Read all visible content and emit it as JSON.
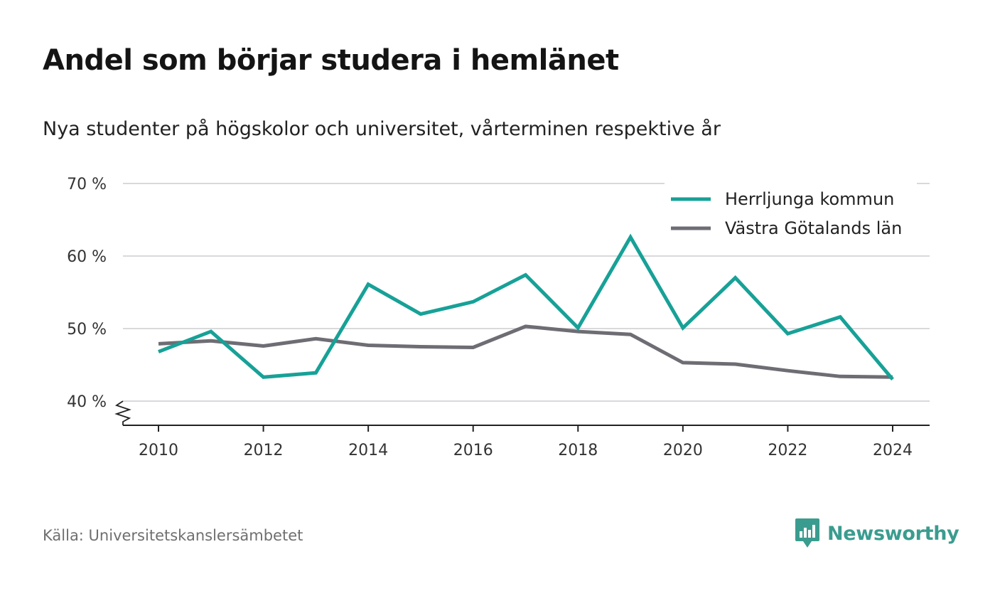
{
  "title": "Andel som börjar studera i hemlänet",
  "subtitle": "Nya studenter på högskolor och universitet, vårterminen respektive år",
  "source": "Källa: Universitetskanslersämbetet",
  "brand": {
    "name": "Newsworthy",
    "icon": "newsworthy-logo-icon",
    "color": "#3a9c8f"
  },
  "chart_data": {
    "type": "line",
    "x": [
      2010,
      2011,
      2012,
      2013,
      2014,
      2015,
      2016,
      2017,
      2018,
      2019,
      2020,
      2021,
      2022,
      2023,
      2024
    ],
    "series": [
      {
        "name": "Herrljunga kommun",
        "color": "#17a197",
        "values": [
          46.8,
          49.6,
          43.3,
          43.9,
          56.1,
          52.0,
          53.7,
          57.4,
          50.1,
          62.6,
          50.1,
          57.0,
          49.3,
          51.6,
          43.0
        ]
      },
      {
        "name": "Västra Götalands län",
        "color": "#6e6d74",
        "values": [
          47.9,
          48.3,
          47.6,
          48.6,
          47.7,
          47.5,
          47.4,
          50.3,
          49.6,
          49.2,
          45.3,
          45.1,
          44.2,
          43.4,
          43.3
        ]
      }
    ],
    "x_ticks": [
      2010,
      2012,
      2014,
      2016,
      2018,
      2020,
      2022,
      2024
    ],
    "y_ticks": [
      40,
      50,
      60,
      70
    ],
    "y_tick_labels": [
      "40 %",
      "50 %",
      "60 %",
      "70 %"
    ],
    "ylim": [
      40,
      70
    ],
    "xlim": [
      2010,
      2024
    ],
    "y_axis_break": true,
    "grid": "horizontal",
    "legend_position": "top-right"
  }
}
